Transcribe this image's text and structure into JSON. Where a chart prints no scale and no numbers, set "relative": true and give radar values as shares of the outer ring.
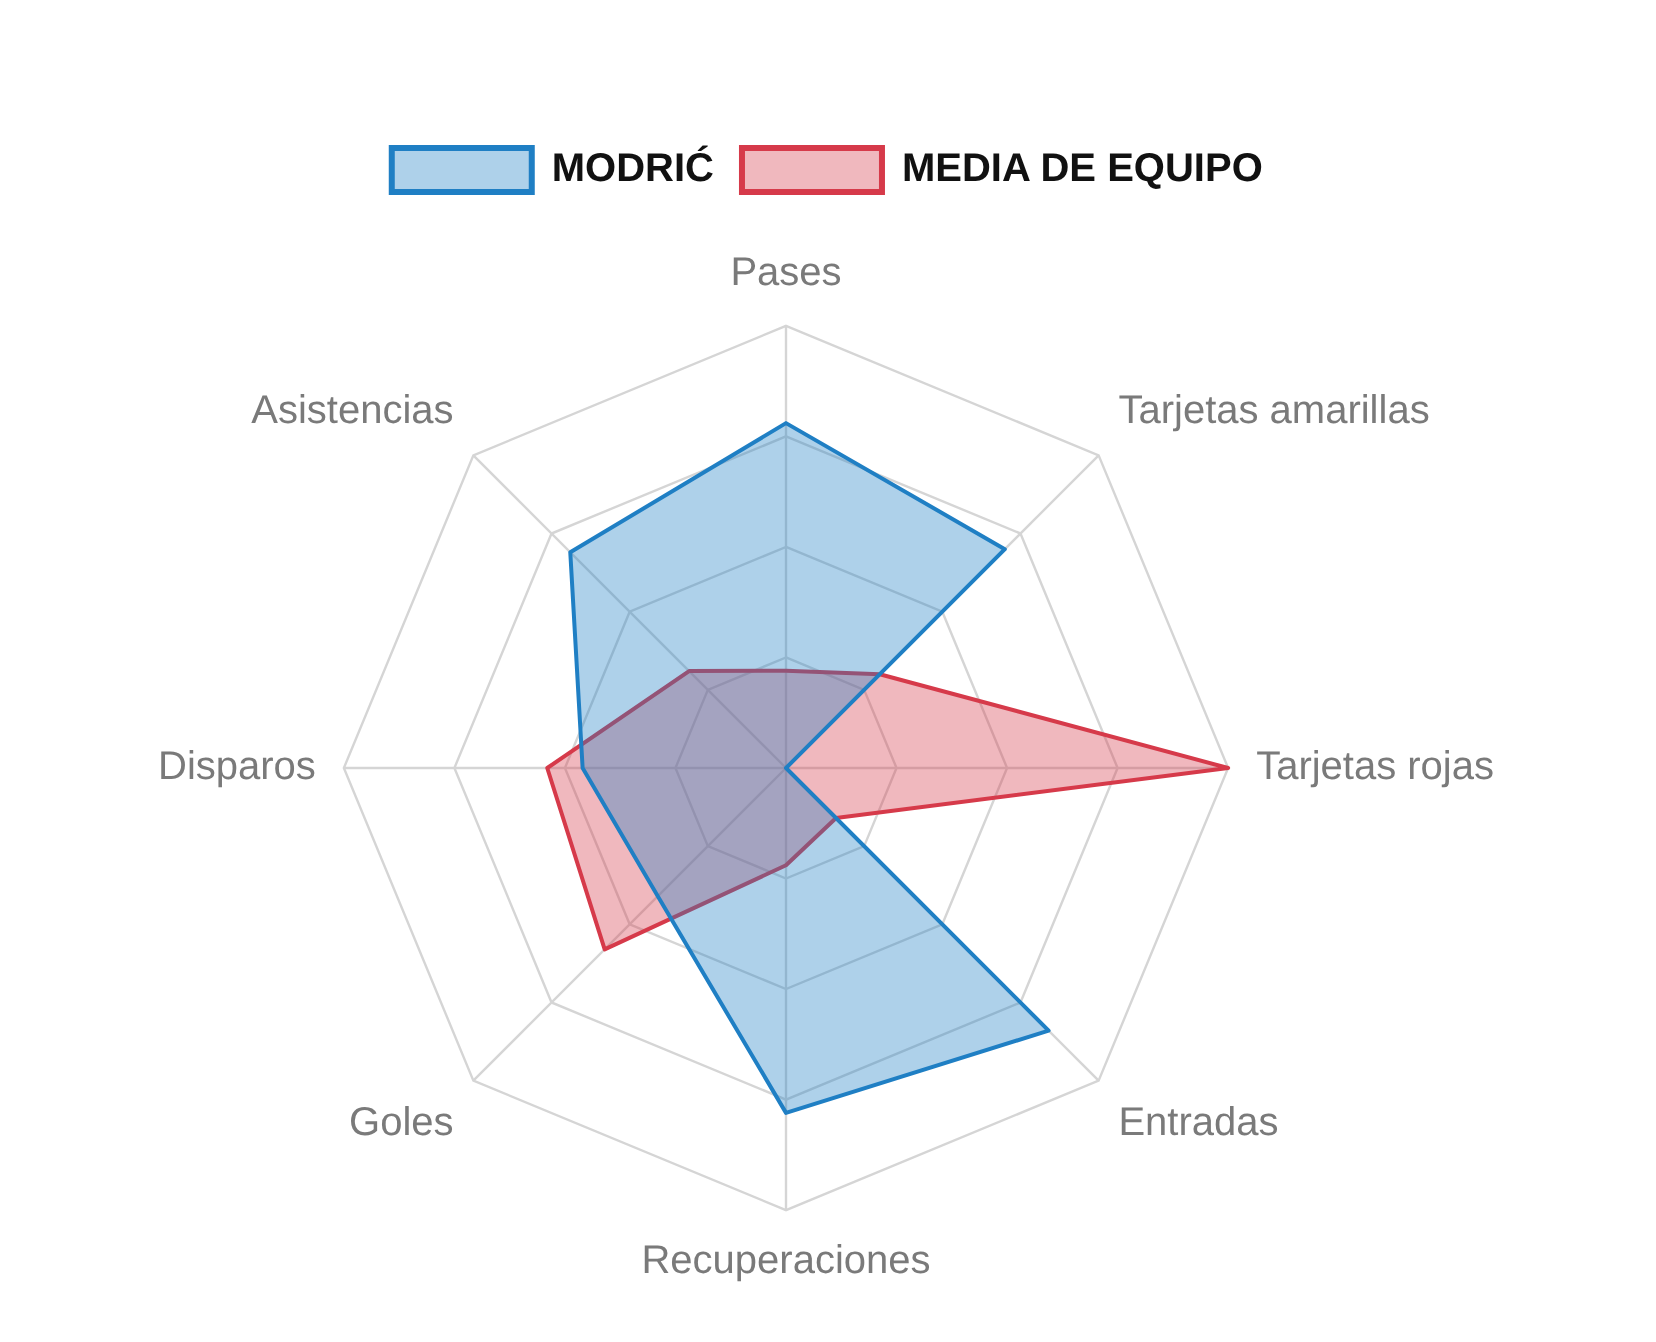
{
  "chart_data": {
    "type": "radar",
    "relative": true,
    "grid": true,
    "legend": "top",
    "marker": "none",
    "categories": [
      "Pases",
      "Tarjetas amarillas",
      "Tarjetas rojas",
      "Entradas",
      "Recuperaciones",
      "Goles",
      "Disparos",
      "Asistencias"
    ],
    "series": [
      {
        "name": "MODRIĆ",
        "color": "#1f7fc4",
        "values": [
          0.78,
          0.7,
          0,
          0.84,
          0.78,
          0.41,
          0.46,
          0.69
        ]
      },
      {
        "name": "MEDIA DE EQUIPO",
        "color": "#d63a4a",
        "values": [
          0.22,
          0.3,
          1,
          0.16,
          0.22,
          0.58,
          0.54,
          0.31
        ]
      }
    ]
  }
}
